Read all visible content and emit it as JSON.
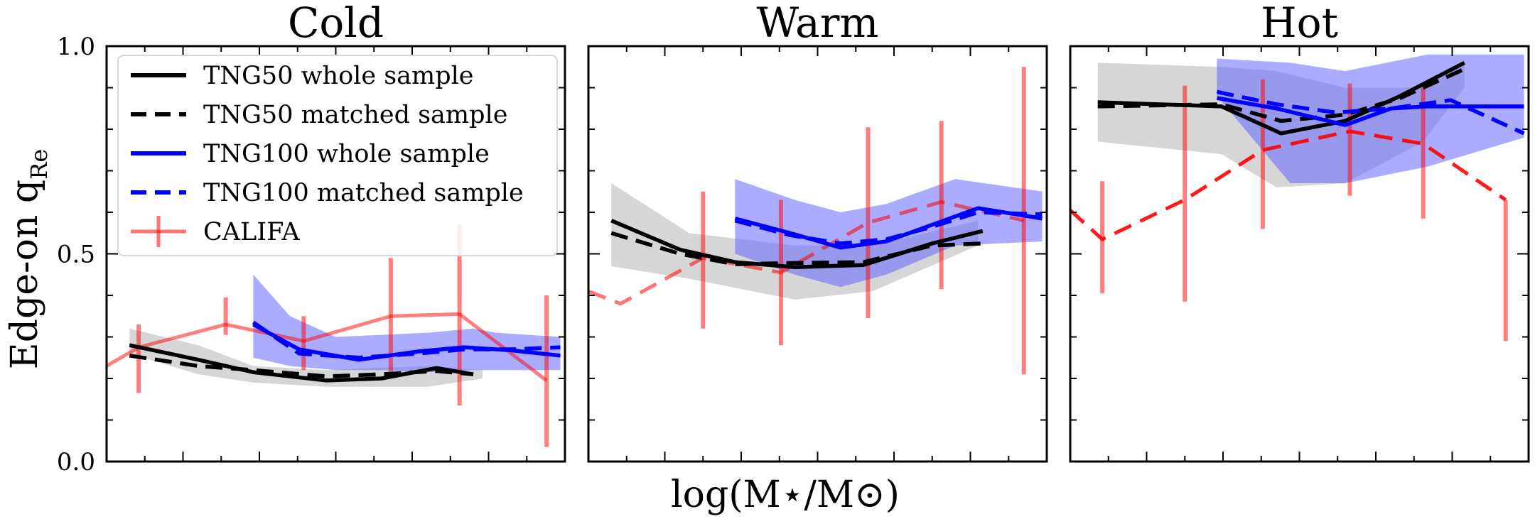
{
  "chart_data": {
    "type": "line",
    "ylabel": "Edge-on q",
    "ylabel_sub": "Re",
    "xlabel": "log(M⋆/M⊙)",
    "ylim": [
      0.0,
      1.0
    ],
    "xlim": [
      0,
      1
    ],
    "yticks": [
      0.0,
      0.5,
      1.0
    ],
    "ytick_labels": [
      "0.0",
      "0.5",
      "1.0"
    ],
    "colors": {
      "tng50": "#000000",
      "tng50_band": "#cccccc",
      "tng100": "#0000ff",
      "tng100_band": "#6666ff",
      "califa": "#ff0000"
    },
    "legend": {
      "placement": "upper-left",
      "entries": [
        {
          "label": "TNG50 whole sample",
          "style": "solid",
          "color": "#000000"
        },
        {
          "label": "TNG50 matched sample",
          "style": "dashed",
          "color": "#000000"
        },
        {
          "label": "TNG100 whole sample",
          "style": "solid",
          "color": "#0000ff"
        },
        {
          "label": "TNG100 matched sample",
          "style": "dashed",
          "color": "#0000ff"
        },
        {
          "label": "CALIFA",
          "style": "errorbar",
          "color": "#ff0000"
        }
      ]
    },
    "panels": [
      {
        "title": "Cold",
        "tng50_band": {
          "x": [
            0.05,
            0.2,
            0.32,
            0.48,
            0.7,
            0.82
          ],
          "upper": [
            0.32,
            0.28,
            0.23,
            0.22,
            0.23,
            0.22
          ],
          "lower": [
            0.26,
            0.21,
            0.19,
            0.18,
            0.18,
            0.2
          ]
        },
        "tng50_whole": {
          "x": [
            0.05,
            0.2,
            0.32,
            0.48,
            0.6,
            0.72,
            0.8
          ],
          "y": [
            0.28,
            0.245,
            0.215,
            0.195,
            0.2,
            0.225,
            0.21
          ]
        },
        "tng50_matched": {
          "x": [
            0.05,
            0.2,
            0.32,
            0.48,
            0.6,
            0.72,
            0.8
          ],
          "y": [
            0.255,
            0.23,
            0.22,
            0.205,
            0.21,
            0.218,
            0.21
          ]
        },
        "tng100_band": {
          "x": [
            0.32,
            0.4,
            0.5,
            0.6,
            0.7,
            0.8,
            0.85,
            0.99
          ],
          "upper": [
            0.45,
            0.35,
            0.3,
            0.305,
            0.31,
            0.32,
            0.31,
            0.3
          ],
          "lower": [
            0.25,
            0.23,
            0.22,
            0.22,
            0.215,
            0.22,
            0.22,
            0.22
          ]
        },
        "tng100_whole": {
          "x": [
            0.32,
            0.42,
            0.55,
            0.68,
            0.78,
            0.88,
            0.99
          ],
          "y": [
            0.33,
            0.27,
            0.245,
            0.265,
            0.275,
            0.268,
            0.255
          ]
        },
        "tng100_matched": {
          "x": [
            0.32,
            0.42,
            0.55,
            0.68,
            0.78,
            0.88,
            0.99
          ],
          "y": [
            0.335,
            0.26,
            0.25,
            0.26,
            0.27,
            0.27,
            0.275
          ]
        },
        "califa_style": "solid",
        "califa": {
          "x": [
            0.0,
            0.07,
            0.26,
            0.43,
            0.62,
            0.77,
            0.96
          ],
          "y": [
            0.23,
            0.275,
            0.33,
            0.29,
            0.35,
            0.355,
            0.195
          ],
          "err_low": [
            0,
            0.11,
            0.025,
            0.07,
            0.14,
            0.22,
            0.16
          ],
          "err_high": [
            0,
            0.055,
            0.065,
            0.06,
            0.14,
            0.215,
            0.205
          ]
        }
      },
      {
        "title": "Warm",
        "tng50_band": {
          "x": [
            0.05,
            0.22,
            0.45,
            0.62,
            0.85
          ],
          "upper": [
            0.67,
            0.55,
            0.52,
            0.52,
            0.58
          ],
          "lower": [
            0.47,
            0.44,
            0.39,
            0.41,
            0.52
          ]
        },
        "tng50_whole": {
          "x": [
            0.05,
            0.2,
            0.32,
            0.45,
            0.6,
            0.75,
            0.86
          ],
          "y": [
            0.58,
            0.51,
            0.48,
            0.468,
            0.473,
            0.525,
            0.555
          ]
        },
        "tng50_matched": {
          "x": [
            0.05,
            0.2,
            0.32,
            0.45,
            0.6,
            0.75,
            0.86
          ],
          "y": [
            0.55,
            0.5,
            0.475,
            0.478,
            0.48,
            0.52,
            0.525
          ]
        },
        "tng100_band": {
          "x": [
            0.32,
            0.45,
            0.55,
            0.65,
            0.8,
            0.99
          ],
          "upper": [
            0.68,
            0.63,
            0.6,
            0.62,
            0.68,
            0.65
          ],
          "lower": [
            0.5,
            0.45,
            0.42,
            0.45,
            0.52,
            0.53
          ]
        },
        "tng100_whole": {
          "x": [
            0.32,
            0.44,
            0.55,
            0.65,
            0.75,
            0.85,
            0.99
          ],
          "y": [
            0.585,
            0.55,
            0.515,
            0.53,
            0.57,
            0.61,
            0.585
          ]
        },
        "tng100_matched": {
          "x": [
            0.32,
            0.44,
            0.55,
            0.65,
            0.75,
            0.85,
            0.99
          ],
          "y": [
            0.58,
            0.545,
            0.525,
            0.535,
            0.565,
            0.6,
            0.595
          ]
        },
        "califa_style": "dashed",
        "califa": {
          "x": [
            0.0,
            0.07,
            0.25,
            0.42,
            0.61,
            0.77,
            0.95
          ],
          "y": [
            0.41,
            0.38,
            0.49,
            0.455,
            0.575,
            0.625,
            0.58
          ],
          "err_low": [
            0,
            0,
            0.17,
            0.175,
            0.23,
            0.21,
            0.37
          ],
          "err_high": [
            0,
            0,
            0.16,
            0.175,
            0.23,
            0.195,
            0.37
          ]
        }
      },
      {
        "title": "Hot",
        "tng50_band": {
          "x": [
            0.06,
            0.33,
            0.45,
            0.6,
            0.77,
            0.86
          ],
          "upper": [
            0.96,
            0.95,
            0.94,
            0.9,
            0.9,
            0.96
          ],
          "lower": [
            0.77,
            0.74,
            0.66,
            0.67,
            0.77,
            0.9
          ]
        },
        "tng50_whole": {
          "x": [
            0.06,
            0.33,
            0.46,
            0.6,
            0.72,
            0.86
          ],
          "y": [
            0.865,
            0.855,
            0.79,
            0.82,
            0.88,
            0.96
          ]
        },
        "tng50_matched": {
          "x": [
            0.06,
            0.33,
            0.46,
            0.6,
            0.72,
            0.86
          ],
          "y": [
            0.855,
            0.86,
            0.82,
            0.835,
            0.875,
            0.945
          ]
        },
        "tng100_band": {
          "x": [
            0.32,
            0.48,
            0.6,
            0.78,
            0.99
          ],
          "upper": [
            0.97,
            0.96,
            0.94,
            0.98,
            0.98
          ],
          "lower": [
            0.88,
            0.67,
            0.67,
            0.71,
            0.78
          ]
        },
        "tng100_whole": {
          "x": [
            0.32,
            0.45,
            0.6,
            0.7,
            0.78,
            0.99
          ],
          "y": [
            0.875,
            0.85,
            0.81,
            0.85,
            0.855,
            0.855
          ]
        },
        "tng100_matched": {
          "x": [
            0.32,
            0.45,
            0.58,
            0.7,
            0.83,
            0.99
          ],
          "y": [
            0.89,
            0.86,
            0.84,
            0.85,
            0.87,
            0.79
          ]
        },
        "califa_style": "dashed",
        "califa": {
          "x": [
            0.0,
            0.07,
            0.25,
            0.42,
            0.61,
            0.77,
            0.95
          ],
          "y": [
            0.605,
            0.535,
            0.63,
            0.75,
            0.795,
            0.765,
            0.63
          ],
          "err_low": [
            0,
            0.13,
            0.245,
            0.19,
            0.155,
            0.18,
            0.34
          ],
          "err_high": [
            0,
            0.14,
            0.275,
            0.17,
            0.115,
            0.145,
            0.0
          ]
        }
      }
    ]
  }
}
